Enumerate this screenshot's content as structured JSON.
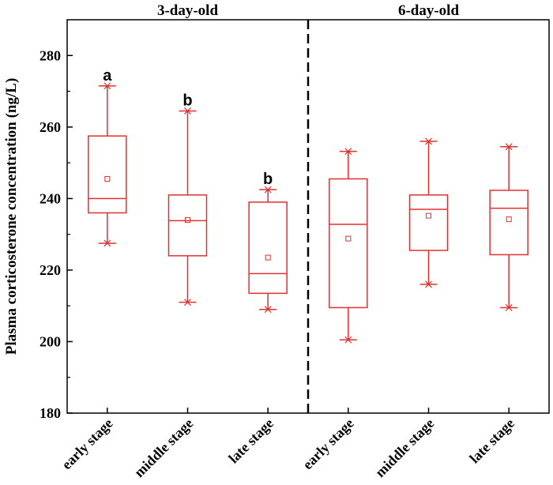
{
  "chart_data": {
    "type": "box",
    "ylabel": "Plasma corticosterone concentration (ng/L)",
    "ylim": [
      180,
      290
    ],
    "yticks": [
      180,
      200,
      220,
      240,
      260,
      280
    ],
    "groups": [
      {
        "label": "3-day-old"
      },
      {
        "label": "6-day-old"
      }
    ],
    "categories": [
      "early stage",
      "middle stage",
      "late stage",
      "early stage",
      "middle stage",
      "late stage"
    ],
    "boxes": [
      {
        "whisker_min": 227.5,
        "q1": 236,
        "median": 240,
        "q3": 257.5,
        "whisker_max": 271.5,
        "mean": 245.5,
        "sig": "a"
      },
      {
        "whisker_min": 211,
        "q1": 224,
        "median": 233.8,
        "q3": 241,
        "whisker_max": 264.5,
        "mean": 234,
        "sig": "b"
      },
      {
        "whisker_min": 209,
        "q1": 213.5,
        "median": 219,
        "q3": 239,
        "whisker_max": 242.5,
        "mean": 223.5,
        "sig": "b"
      },
      {
        "whisker_min": 200.5,
        "q1": 209.5,
        "median": 232.8,
        "q3": 245.5,
        "whisker_max": 253.2,
        "mean": 228.8,
        "sig": ""
      },
      {
        "whisker_min": 216,
        "q1": 225.5,
        "median": 237,
        "q3": 241,
        "whisker_max": 256,
        "mean": 235.2,
        "sig": ""
      },
      {
        "whisker_min": 209.5,
        "q1": 224.3,
        "median": 237.3,
        "q3": 242.3,
        "whisker_max": 254.5,
        "mean": 234.2,
        "sig": ""
      }
    ],
    "divider_between_groups": true,
    "colors": {
      "box": "#e03030",
      "axis": "#000000",
      "divider": "#000000"
    }
  }
}
